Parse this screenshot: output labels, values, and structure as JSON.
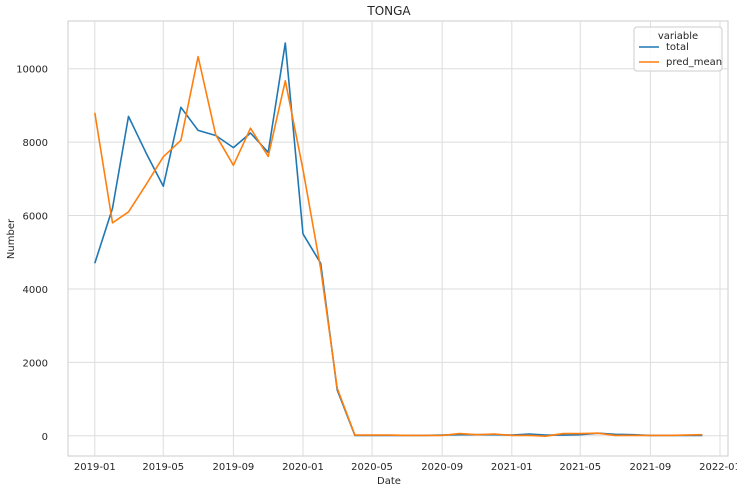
{
  "chart_data": {
    "type": "line",
    "title": "TONGA",
    "xlabel": "Date",
    "ylabel": "Number",
    "ylim": [
      -550,
      11300
    ],
    "xlim": [
      "2018-11-15",
      "2022-01-15"
    ],
    "grid": true,
    "legend": {
      "title": "variable",
      "placement": "top-right"
    },
    "x_ticks": [
      "2019-01",
      "2019-05",
      "2019-09",
      "2020-01",
      "2020-05",
      "2020-09",
      "2021-01",
      "2021-05",
      "2021-09",
      "2022-01"
    ],
    "y_ticks": [
      0,
      2000,
      4000,
      6000,
      8000,
      10000
    ],
    "x": [
      "2019-01",
      "2019-02",
      "2019-03",
      "2019-04",
      "2019-05",
      "2019-06",
      "2019-07",
      "2019-08",
      "2019-09",
      "2019-10",
      "2019-11",
      "2019-12",
      "2020-01",
      "2020-02",
      "2020-03",
      "2020-04",
      "2020-05",
      "2020-06",
      "2020-07",
      "2020-08",
      "2020-09",
      "2020-10",
      "2020-11",
      "2020-12",
      "2021-01",
      "2021-02",
      "2021-03",
      "2021-04",
      "2021-05",
      "2021-06",
      "2021-07",
      "2021-08",
      "2021-09",
      "2021-10",
      "2021-11",
      "2021-12"
    ],
    "series": [
      {
        "name": "total",
        "color": "#1f77b4",
        "values": [
          4700,
          6200,
          8700,
          7700,
          6800,
          8950,
          8320,
          8180,
          7850,
          8250,
          7720,
          10700,
          5500,
          4700,
          1250,
          10,
          10,
          10,
          10,
          10,
          20,
          30,
          30,
          30,
          20,
          50,
          20,
          20,
          30,
          70,
          40,
          30,
          10,
          10,
          10,
          10
        ]
      },
      {
        "name": "pred_mean",
        "color": "#ff7f0e",
        "values": [
          8800,
          5800,
          6100,
          6850,
          7600,
          8050,
          10330,
          8200,
          7370,
          8380,
          7610,
          9670,
          7250,
          4550,
          1300,
          20,
          20,
          20,
          10,
          10,
          10,
          60,
          30,
          50,
          10,
          10,
          -10,
          60,
          60,
          70,
          10,
          10,
          10,
          10,
          20,
          30
        ]
      }
    ]
  }
}
